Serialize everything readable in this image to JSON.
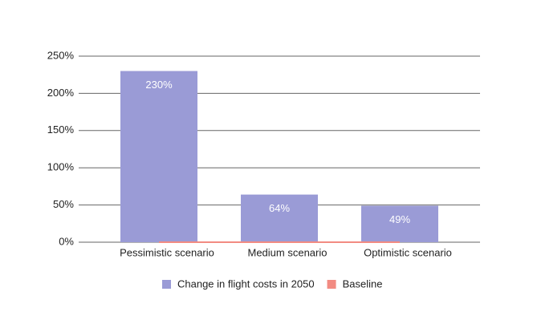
{
  "chart_data": {
    "type": "bar",
    "categories": [
      "Pessimistic scenario",
      "Medium scenario",
      "Optimistic scenario"
    ],
    "series": [
      {
        "name": "Change in flight costs in 2050",
        "color": "#9a9bd6",
        "values": [
          230,
          64,
          49
        ],
        "value_labels": [
          "230%",
          "64%",
          "49%"
        ]
      },
      {
        "name": "Baseline",
        "type": "line",
        "color": "#f28b82",
        "values": [
          0,
          0,
          0
        ]
      }
    ],
    "ylim": [
      0,
      250
    ],
    "yticks": [
      {
        "value": 0,
        "label": "0%"
      },
      {
        "value": 50,
        "label": "50%"
      },
      {
        "value": 100,
        "label": "100%"
      },
      {
        "value": 150,
        "label": "150%"
      },
      {
        "value": 200,
        "label": "200%"
      },
      {
        "value": 250,
        "label": "250%"
      }
    ],
    "grid": true
  }
}
